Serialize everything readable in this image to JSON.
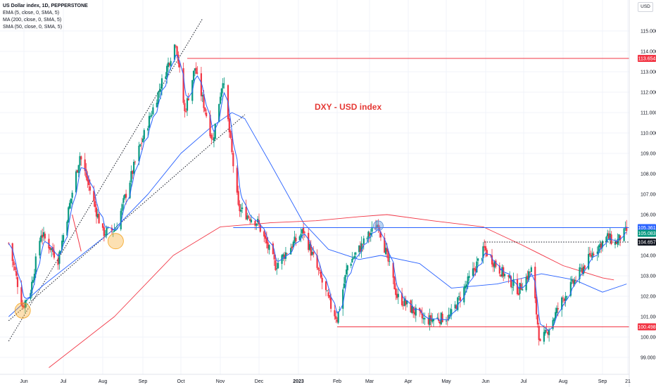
{
  "legend": {
    "title": "US Dollar index, 1D, PEPPERSTONE",
    "ema": "EMA (5, close, 0, SMA, 5)",
    "ma": "MA (200, close, 0, SMA, 5)",
    "sma": "SMA (50, close, 0, SMA, 5)"
  },
  "currency": "USD",
  "annotation": "DXY - USD index",
  "colors": {
    "up": "#089981",
    "down": "#f23645",
    "ema": "#2962ff",
    "ma200": "#f23645",
    "sma50": "#2962ff",
    "support": "#f23645",
    "resistance": "#2962ff",
    "marker": "#f5a623",
    "annotation": "#e53935"
  },
  "chart_data": {
    "type": "candlestick",
    "title": "US Dollar index, 1D, PEPPERSTONE",
    "ylim": [
      98.5,
      115.6
    ],
    "y_ticks": [
      "115.000",
      "114.000",
      "113.000",
      "112.000",
      "111.000",
      "110.000",
      "109.000",
      "108.000",
      "107.000",
      "106.000",
      "105.000",
      "104.000",
      "103.000",
      "102.000",
      "101.000",
      "100.000",
      "99.000"
    ],
    "x_ticks": [
      "Jun",
      "Jul",
      "Aug",
      "Sep",
      "Oct",
      "Nov",
      "Dec",
      "2023",
      "Feb",
      "Mar",
      "Apr",
      "May",
      "Jun",
      "Jul",
      "Aug",
      "Sep",
      "21"
    ],
    "x_tick_bold": [
      "2023"
    ],
    "price_path": [
      [
        "2022-05-20",
        104.6
      ],
      [
        "2022-05-31",
        101.5
      ],
      [
        "2022-06-06",
        102.3
      ],
      [
        "2022-06-14",
        105.1
      ],
      [
        "2022-06-27",
        103.8
      ],
      [
        "2022-07-14",
        108.9
      ],
      [
        "2022-08-01",
        105.1
      ],
      [
        "2022-08-11",
        105.3
      ],
      [
        "2022-08-29",
        109.2
      ],
      [
        "2022-09-27",
        114.5
      ],
      [
        "2022-10-04",
        111.0
      ],
      [
        "2022-10-12",
        113.2
      ],
      [
        "2022-10-26",
        109.6
      ],
      [
        "2022-11-03",
        112.7
      ],
      [
        "2022-11-15",
        106.3
      ],
      [
        "2022-11-30",
        105.6
      ],
      [
        "2022-12-14",
        103.5
      ],
      [
        "2023-01-05",
        105.2
      ],
      [
        "2023-01-27",
        101.5
      ],
      [
        "2023-02-01",
        100.9
      ],
      [
        "2023-02-10",
        103.5
      ],
      [
        "2023-03-08",
        105.6
      ],
      [
        "2023-03-23",
        102.0
      ],
      [
        "2023-04-14",
        100.8
      ],
      [
        "2023-05-04",
        101.0
      ],
      [
        "2023-05-31",
        104.3
      ],
      [
        "2023-06-12",
        103.3
      ],
      [
        "2023-06-27",
        102.3
      ],
      [
        "2023-07-07",
        103.3
      ],
      [
        "2023-07-14",
        99.6
      ],
      [
        "2023-08-01",
        101.9
      ],
      [
        "2023-08-25",
        104.2
      ],
      [
        "2023-09-05",
        104.9
      ],
      [
        "2023-09-11",
        104.6
      ],
      [
        "2023-09-20",
        105.2
      ]
    ],
    "series": [
      {
        "name": "EMA (5, close, 0, SMA, 5)"
      },
      {
        "name": "SMA (50, close, 0, SMA, 5)",
        "points": [
          [
            "2022-05-20",
            101.0
          ],
          [
            "2022-06-15",
            102.5
          ],
          [
            "2022-07-15",
            104.0
          ],
          [
            "2022-08-10",
            105.3
          ],
          [
            "2022-09-05",
            107.0
          ],
          [
            "2022-10-01",
            109.0
          ],
          [
            "2022-10-25",
            110.3
          ],
          [
            "2022-11-10",
            111.0
          ],
          [
            "2022-11-20",
            110.7
          ],
          [
            "2022-12-10",
            108.5
          ],
          [
            "2023-01-05",
            105.6
          ],
          [
            "2023-01-25",
            104.3
          ],
          [
            "2023-02-20",
            103.8
          ],
          [
            "2023-03-10",
            104.0
          ],
          [
            "2023-04-10",
            103.6
          ],
          [
            "2023-05-05",
            102.4
          ],
          [
            "2023-06-10",
            102.6
          ],
          [
            "2023-07-15",
            103.1
          ],
          [
            "2023-08-10",
            102.8
          ],
          [
            "2023-09-01",
            102.2
          ],
          [
            "2023-09-20",
            102.6
          ]
        ]
      },
      {
        "name": "MA (200, close, 0, SMA, 5)",
        "points": [
          [
            "2022-06-20",
            98.5
          ],
          [
            "2022-08-10",
            101.0
          ],
          [
            "2022-09-25",
            104.0
          ],
          [
            "2022-11-01",
            105.4
          ],
          [
            "2022-12-10",
            105.6
          ],
          [
            "2023-01-15",
            105.7
          ],
          [
            "2023-02-20",
            105.9
          ],
          [
            "2023-03-15",
            106.0
          ],
          [
            "2023-04-20",
            105.7
          ],
          [
            "2023-05-30",
            105.4
          ],
          [
            "2023-06-30",
            104.5
          ],
          [
            "2023-08-01",
            103.5
          ],
          [
            "2023-09-01",
            102.9
          ],
          [
            "2023-09-10",
            102.8
          ]
        ]
      }
    ],
    "horizontal_levels": [
      {
        "label": "113.654",
        "y": 113.654,
        "from": "2022-10-06",
        "style": "support"
      },
      {
        "label": "105.361",
        "y": 105.361,
        "from": "2022-11-11",
        "style": "resistance"
      },
      {
        "label": "104.657",
        "y": 104.657,
        "from": "2023-05-31",
        "style": "dotted"
      },
      {
        "label": "100.498",
        "y": 100.498,
        "from": "2023-02-01",
        "style": "support"
      }
    ],
    "last_price": "105.083",
    "trend_lines": [
      {
        "points": [
          [
            "2022-05-20",
            99.8
          ],
          [
            "2022-10-18",
            115.6
          ]
        ],
        "style": "dotted"
      },
      {
        "points": [
          [
            "2022-05-20",
            100.8
          ],
          [
            "2022-11-20",
            110.9
          ]
        ],
        "style": "dotted"
      },
      {
        "points": [
          [
            "2022-07-08",
            106.0
          ],
          [
            "2022-07-15",
            104.2
          ]
        ],
        "style": "solid"
      }
    ],
    "markers": [
      {
        "date": "2022-05-31",
        "y": 101.3,
        "color": "orange"
      },
      {
        "date": "2022-08-11",
        "y": 104.7,
        "color": "orange"
      },
      {
        "date": "2023-03-08",
        "y": 105.45,
        "color": "blue"
      }
    ]
  }
}
